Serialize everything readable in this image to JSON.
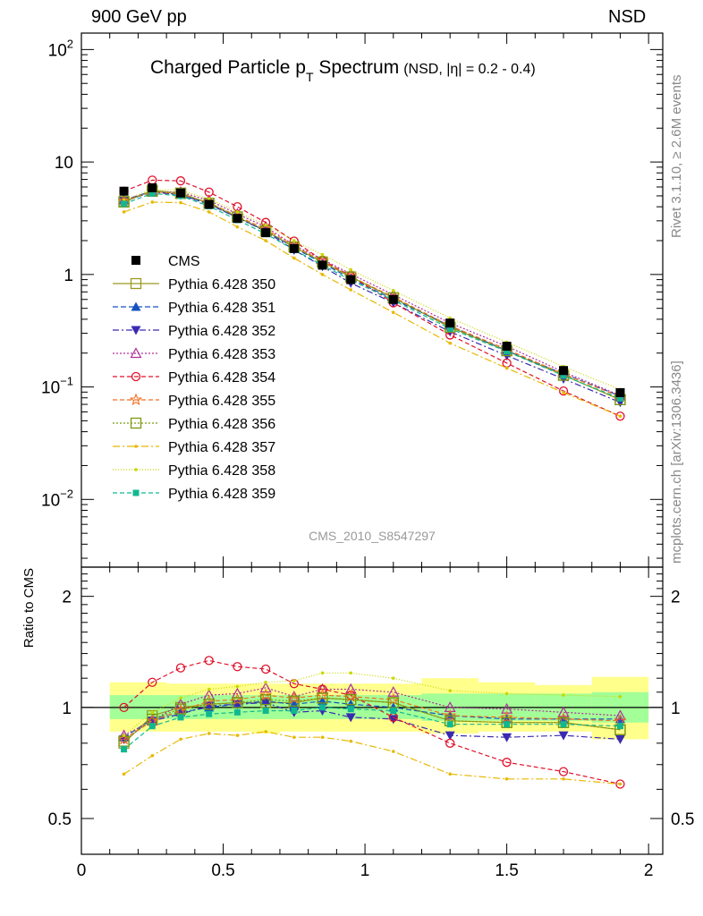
{
  "header": {
    "energy_label": "900 GeV pp",
    "process_label": "NSD"
  },
  "side_labels": {
    "rivet": "Rivet 3.1.10, ≥ 2.6M events",
    "source": "mcplots.cern.ch [arXiv:1306.3436]"
  },
  "watermark": "CMS_2010_S8547297",
  "chart_data": [
    {
      "type": "line",
      "panel": "main",
      "title": "Charged Particle p",
      "title_sub": "T",
      "title_rest": " Spectrum",
      "subtitle": "(NSD, |η| = 0.2 - 0.4)",
      "yscale": "log",
      "xlim": [
        0,
        2.05
      ],
      "ylim": [
        0.0025,
        140
      ],
      "ytick_labels": [
        {
          "value": 100,
          "base": "10",
          "exp": "2"
        },
        {
          "value": 10,
          "base": "10",
          "exp": ""
        },
        {
          "value": 1,
          "base": "1",
          "exp": ""
        },
        {
          "value": 0.1,
          "base": "10",
          "exp": "−1"
        },
        {
          "value": 0.01,
          "base": "10",
          "exp": "−2"
        }
      ],
      "legend_position": "left",
      "x": [
        0.15,
        0.25,
        0.35,
        0.45,
        0.55,
        0.65,
        0.75,
        0.85,
        0.95,
        1.1,
        1.3,
        1.5,
        1.7,
        1.9
      ],
      "data": {
        "name": "CMS",
        "values": [
          5.5,
          5.9,
          5.3,
          4.2,
          3.15,
          2.35,
          1.7,
          1.21,
          0.9,
          0.6,
          0.37,
          0.23,
          0.14,
          0.089
        ]
      },
      "series": [
        {
          "name": "Pythia 6.428 350",
          "color": "#9a9a22",
          "dash": "",
          "marker": "square-open",
          "values": [
            4.4,
            5.6,
            5.3,
            4.3,
            3.25,
            2.43,
            1.75,
            1.29,
            0.95,
            0.62,
            0.34,
            0.21,
            0.127,
            0.077
          ]
        },
        {
          "name": "Pythia 6.428 351",
          "color": "#1552c0",
          "dash": "6,3",
          "marker": "triangle-up",
          "values": [
            4.6,
            5.5,
            5.1,
            4.2,
            3.2,
            2.45,
            1.73,
            1.26,
            0.92,
            0.6,
            0.35,
            0.21,
            0.131,
            0.083
          ]
        },
        {
          "name": "Pythia 6.428 352",
          "color": "#3a2ab0",
          "dash": "7,3,2,3",
          "marker": "triangle-down",
          "values": [
            4.5,
            5.4,
            5.1,
            4.25,
            3.2,
            2.42,
            1.65,
            1.18,
            0.84,
            0.56,
            0.31,
            0.19,
            0.118,
            0.073
          ]
        },
        {
          "name": "Pythia 6.428 353",
          "color": "#b0309a",
          "dash": "2,2",
          "marker": "triangle-up-open",
          "values": [
            4.6,
            5.4,
            5.4,
            4.55,
            3.45,
            2.65,
            1.82,
            1.36,
            1.01,
            0.66,
            0.37,
            0.23,
            0.136,
            0.084
          ]
        },
        {
          "name": "Pythia 6.428 354",
          "color": "#e0102a",
          "dash": "5,3",
          "marker": "circle-open",
          "values": [
            5.5,
            6.9,
            6.8,
            5.4,
            4.0,
            2.9,
            1.98,
            1.34,
            0.97,
            0.56,
            0.29,
            0.163,
            0.092,
            0.055
          ]
        },
        {
          "name": "Pythia 6.428 355",
          "color": "#f07020",
          "dash": "5,3",
          "marker": "star-open",
          "values": [
            4.5,
            5.45,
            5.2,
            4.35,
            3.3,
            2.53,
            1.8,
            1.31,
            0.96,
            0.63,
            0.35,
            0.216,
            0.13,
            0.082
          ]
        },
        {
          "name": "Pythia 6.428 356",
          "color": "#7a9a10",
          "dash": "2,2",
          "marker": "square-open",
          "values": [
            4.45,
            5.5,
            5.25,
            4.3,
            3.25,
            2.45,
            1.76,
            1.29,
            0.95,
            0.62,
            0.34,
            0.21,
            0.127,
            0.077
          ]
        },
        {
          "name": "Pythia 6.428 357",
          "color": "#e8b800",
          "dash": "8,3,2,3",
          "marker": "dot",
          "values": [
            3.6,
            4.4,
            4.35,
            3.6,
            2.65,
            2.0,
            1.4,
            1.0,
            0.73,
            0.46,
            0.245,
            0.147,
            0.089,
            0.055
          ]
        },
        {
          "name": "Pythia 6.428 358",
          "color": "#c8d800",
          "dash": "1,2",
          "marker": "dot",
          "values": [
            4.6,
            5.7,
            5.6,
            4.7,
            3.6,
            2.75,
            2.0,
            1.5,
            1.1,
            0.72,
            0.41,
            0.25,
            0.152,
            0.095
          ]
        },
        {
          "name": "Pythia 6.428 359",
          "color": "#10b890",
          "dash": "5,3",
          "marker": "square-small",
          "values": [
            4.25,
            5.25,
            5.0,
            4.05,
            3.05,
            2.3,
            1.66,
            1.21,
            0.89,
            0.59,
            0.33,
            0.207,
            0.126,
            0.079
          ]
        }
      ]
    },
    {
      "type": "line",
      "panel": "ratio",
      "ylabel": "Ratio to CMS",
      "yscale": "log",
      "xlim": [
        0,
        2.05
      ],
      "ylim": [
        0.4,
        2.4
      ],
      "yticks": [
        0.5,
        1,
        2
      ],
      "ytick_labels": [
        "0.5",
        "1",
        "2"
      ],
      "xticks": [
        0,
        0.5,
        1,
        1.5,
        2
      ],
      "xtick_labels": [
        "0",
        "0.5",
        "1",
        "1.5",
        "2"
      ],
      "reference_line": 1,
      "bins": [
        {
          "x0": 0.1,
          "x1": 0.2,
          "stat": [
            0.93,
            1.08
          ],
          "total": [
            0.86,
            1.17
          ]
        },
        {
          "x0": 0.2,
          "x1": 0.3,
          "stat": [
            0.93,
            1.08
          ],
          "total": [
            0.86,
            1.17
          ]
        },
        {
          "x0": 0.3,
          "x1": 0.4,
          "stat": [
            0.93,
            1.08
          ],
          "total": [
            0.86,
            1.16
          ]
        },
        {
          "x0": 0.4,
          "x1": 0.5,
          "stat": [
            0.93,
            1.08
          ],
          "total": [
            0.86,
            1.16
          ]
        },
        {
          "x0": 0.5,
          "x1": 0.6,
          "stat": [
            0.93,
            1.08
          ],
          "total": [
            0.86,
            1.16
          ]
        },
        {
          "x0": 0.6,
          "x1": 0.7,
          "stat": [
            0.93,
            1.08
          ],
          "total": [
            0.85,
            1.16
          ]
        },
        {
          "x0": 0.7,
          "x1": 0.8,
          "stat": [
            0.93,
            1.08
          ],
          "total": [
            0.86,
            1.16
          ]
        },
        {
          "x0": 0.8,
          "x1": 0.9,
          "stat": [
            0.93,
            1.08
          ],
          "total": [
            0.86,
            1.16
          ]
        },
        {
          "x0": 0.9,
          "x1": 1.0,
          "stat": [
            0.93,
            1.08
          ],
          "total": [
            0.86,
            1.16
          ]
        },
        {
          "x0": 1.0,
          "x1": 1.2,
          "stat": [
            0.93,
            1.08
          ],
          "total": [
            0.86,
            1.16
          ]
        },
        {
          "x0": 1.2,
          "x1": 1.4,
          "stat": [
            0.92,
            1.09
          ],
          "total": [
            0.85,
            1.2
          ]
        },
        {
          "x0": 1.4,
          "x1": 1.6,
          "stat": [
            0.92,
            1.09
          ],
          "total": [
            0.86,
            1.17
          ]
        },
        {
          "x0": 1.6,
          "x1": 1.8,
          "stat": [
            0.92,
            1.09
          ],
          "total": [
            0.86,
            1.15
          ]
        },
        {
          "x0": 1.8,
          "x1": 2.0,
          "stat": [
            0.91,
            1.1
          ],
          "total": [
            0.82,
            1.21
          ]
        }
      ],
      "x": [
        0.15,
        0.25,
        0.35,
        0.45,
        0.55,
        0.65,
        0.75,
        0.85,
        0.95,
        1.1,
        1.3,
        1.5,
        1.7,
        1.9
      ],
      "series": [
        {
          "name": "Pythia 6.428 350",
          "values": [
            0.8,
            0.95,
            1.0,
            1.02,
            1.03,
            1.03,
            1.03,
            1.06,
            1.05,
            1.03,
            0.92,
            0.91,
            0.91,
            0.87
          ]
        },
        {
          "name": "Pythia 6.428 351",
          "values": [
            0.83,
            0.93,
            0.97,
            1.0,
            1.02,
            1.04,
            1.02,
            1.04,
            1.02,
            1.0,
            0.95,
            0.93,
            0.93,
            0.93
          ]
        },
        {
          "name": "Pythia 6.428 352",
          "values": [
            0.82,
            0.92,
            0.96,
            1.01,
            1.02,
            1.03,
            0.97,
            0.98,
            0.94,
            0.93,
            0.84,
            0.83,
            0.84,
            0.82
          ]
        },
        {
          "name": "Pythia 6.428 353",
          "values": [
            0.84,
            0.92,
            1.02,
            1.08,
            1.09,
            1.13,
            1.07,
            1.12,
            1.12,
            1.1,
            1.0,
            0.99,
            0.97,
            0.95
          ]
        },
        {
          "name": "Pythia 6.428 354",
          "values": [
            1.0,
            1.17,
            1.28,
            1.34,
            1.29,
            1.27,
            1.16,
            1.12,
            1.08,
            0.94,
            0.8,
            0.71,
            0.67,
            0.62
          ]
        },
        {
          "name": "Pythia 6.428 355",
          "values": [
            0.82,
            0.92,
            0.98,
            1.04,
            1.05,
            1.08,
            1.06,
            1.08,
            1.07,
            1.05,
            0.95,
            0.94,
            0.93,
            0.92
          ]
        },
        {
          "name": "Pythia 6.428 356",
          "values": [
            0.81,
            0.93,
            0.99,
            1.02,
            1.03,
            1.05,
            1.04,
            1.06,
            1.05,
            1.03,
            0.92,
            0.91,
            0.91,
            0.87
          ]
        },
        {
          "name": "Pythia 6.428 357",
          "values": [
            0.66,
            0.74,
            0.82,
            0.85,
            0.84,
            0.86,
            0.83,
            0.83,
            0.81,
            0.76,
            0.66,
            0.64,
            0.64,
            0.62
          ]
        },
        {
          "name": "Pythia 6.428 358",
          "values": [
            0.84,
            0.97,
            1.06,
            1.12,
            1.14,
            1.17,
            1.18,
            1.24,
            1.24,
            1.2,
            1.11,
            1.09,
            1.08,
            1.07
          ]
        },
        {
          "name": "Pythia 6.428 359",
          "values": [
            0.77,
            0.89,
            0.94,
            0.96,
            0.97,
            0.98,
            0.98,
            1.0,
            0.99,
            0.98,
            0.9,
            0.9,
            0.9,
            0.89
          ]
        }
      ]
    }
  ]
}
